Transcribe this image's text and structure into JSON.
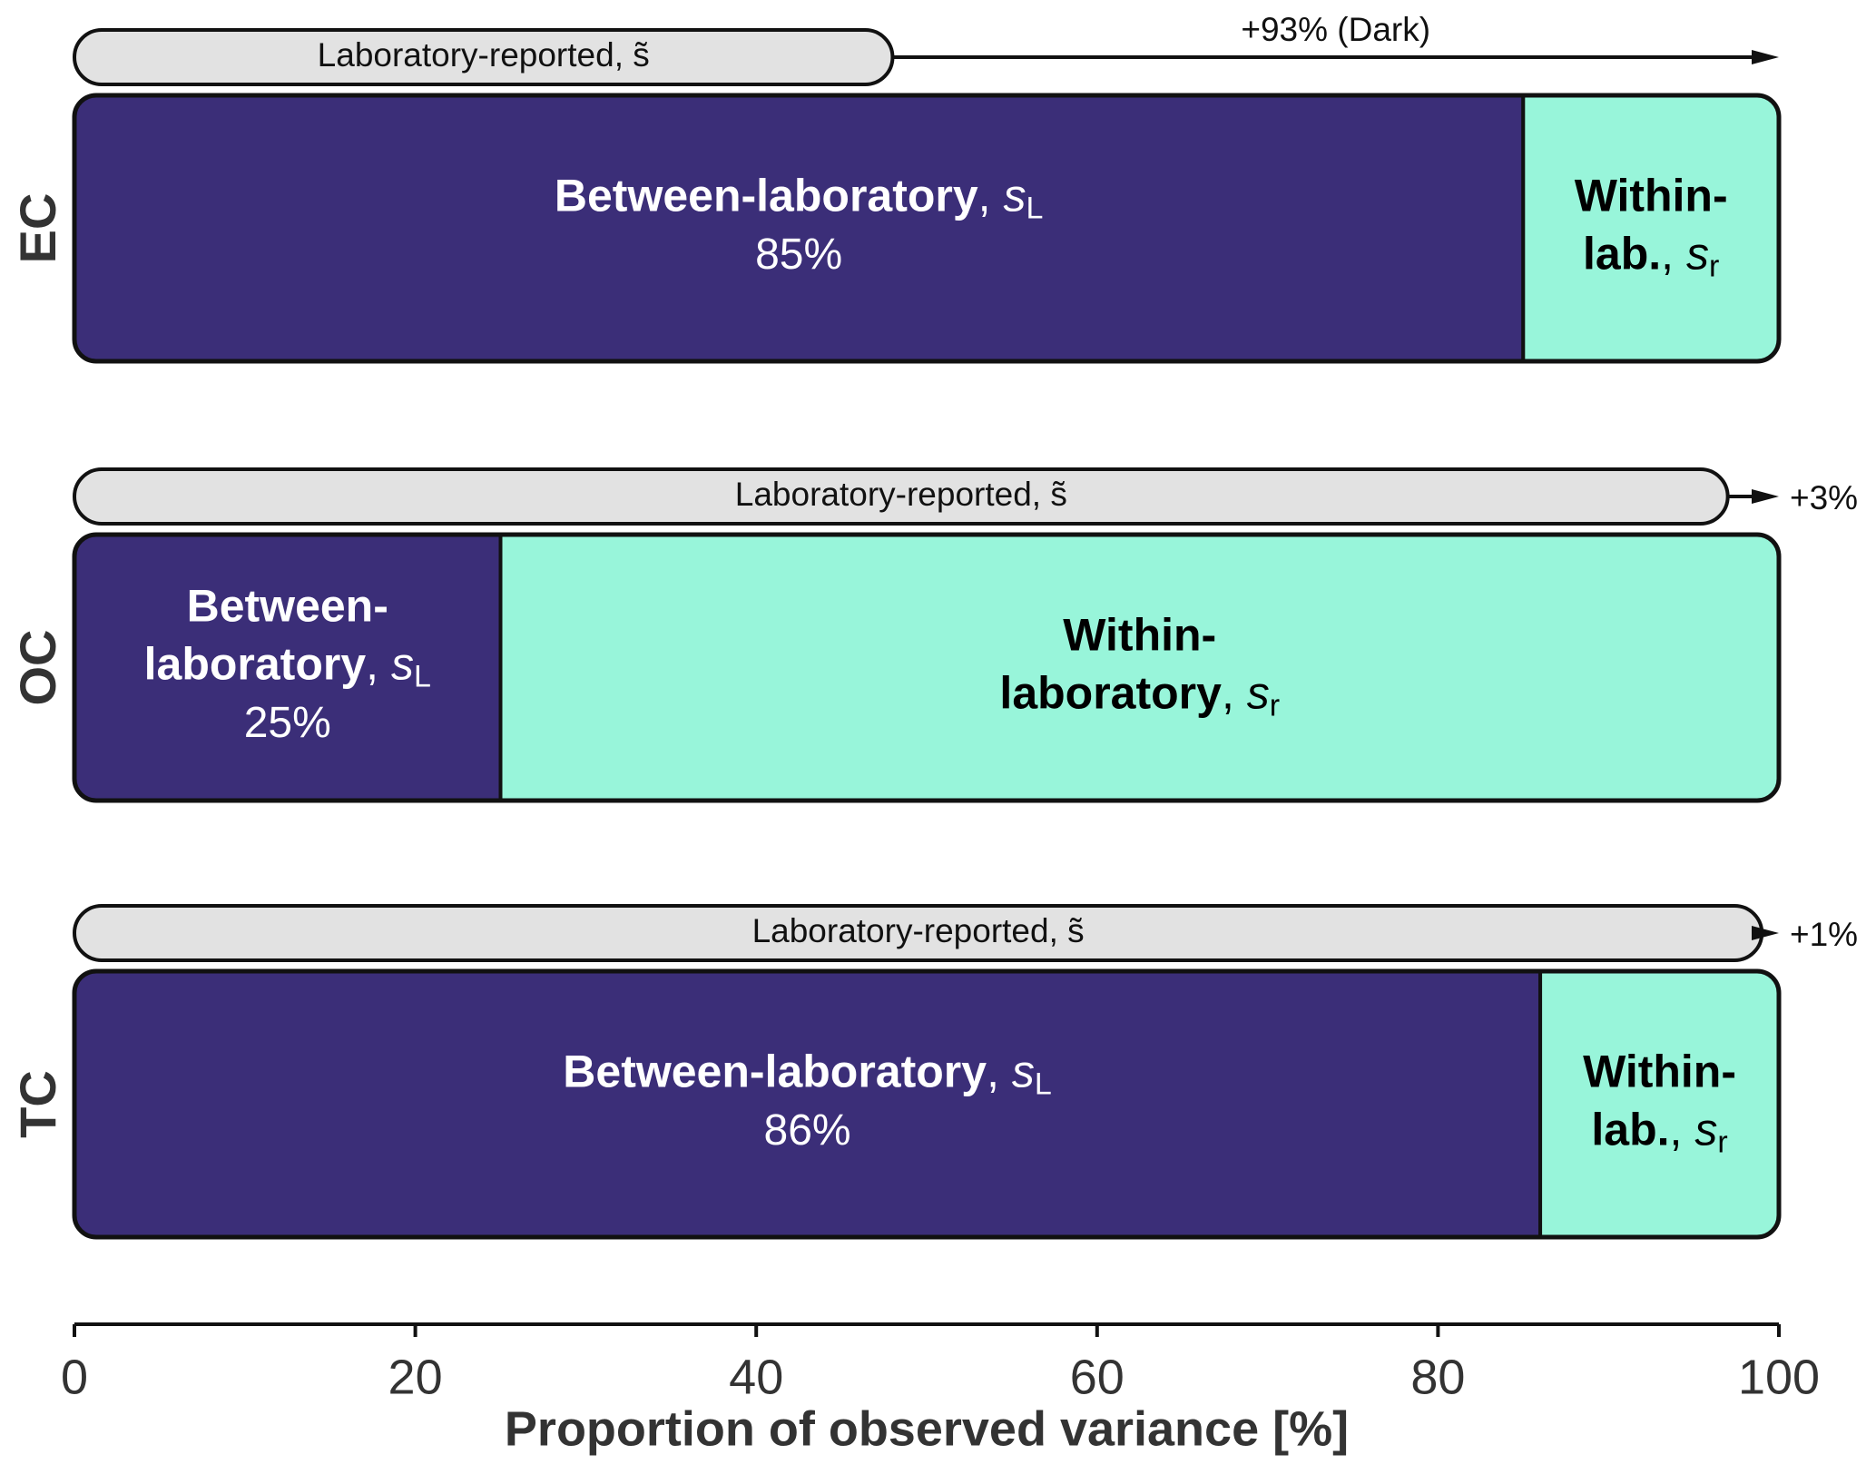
{
  "chart_data": {
    "type": "stacked-bar",
    "categories": [
      "EC",
      "OC",
      "TC"
    ],
    "series": [
      {
        "name": "Between-laboratory",
        "color": "#3b2e78",
        "text_color": "#ffffff",
        "labels": [
          [
            "Between-laboratory"
          ],
          [
            "Between-",
            "laboratory"
          ],
          [
            "Between-laboratory"
          ]
        ],
        "separator": ", ",
        "symbol": "s",
        "subscript": "L",
        "values": [
          85,
          25,
          86
        ],
        "value_labels": [
          "85%",
          "25%",
          "86%"
        ]
      },
      {
        "name": "Within-laboratory",
        "color": "#98f5da",
        "text_color": "#000000",
        "labels": [
          [
            "Within-",
            "lab."
          ],
          [
            "Within-",
            "laboratory"
          ],
          [
            "Within-",
            "lab."
          ]
        ],
        "separator": ", ",
        "symbol": "s",
        "subscript": "r",
        "values": [
          15,
          75,
          14
        ]
      }
    ],
    "reported": {
      "label": "Laboratory-reported, s̃",
      "color": "#e2e2e2",
      "values": [
        48,
        97,
        99
      ],
      "annotations": [
        "+93% (Dark)",
        "+3%",
        "+1%"
      ]
    },
    "xlabel": "Proportion of observed variance [%]",
    "xlim": [
      0,
      100
    ],
    "xticks": [
      0,
      20,
      40,
      60,
      80,
      100
    ]
  }
}
